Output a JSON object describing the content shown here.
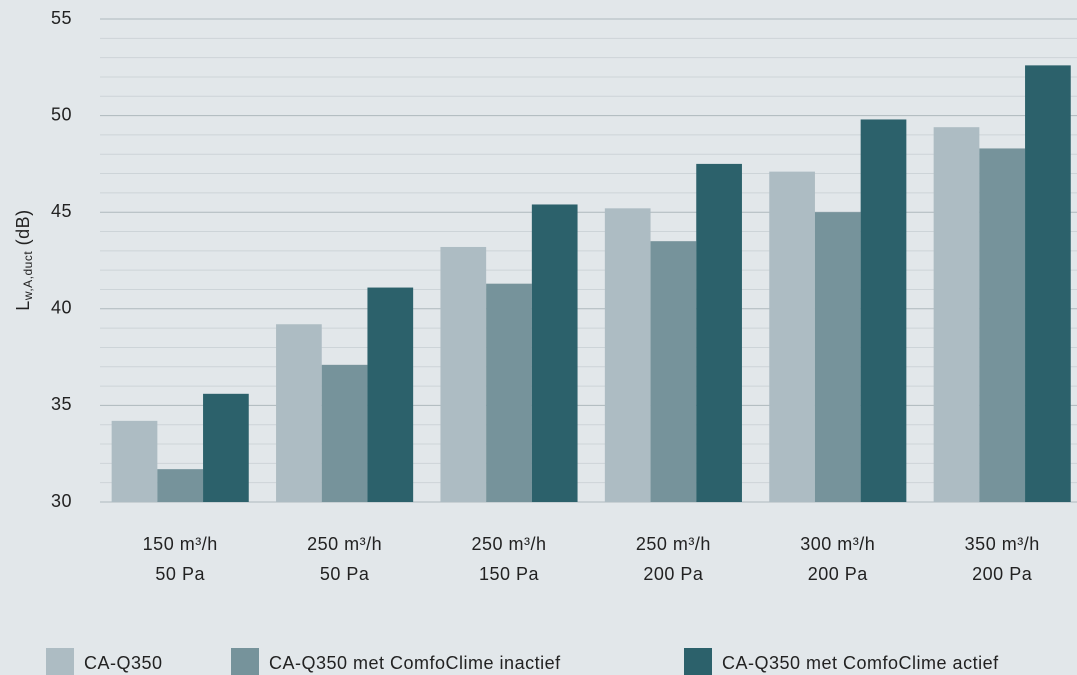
{
  "chart_data": {
    "type": "bar",
    "y_label": {
      "main": "L",
      "sub": "w,A,duct",
      "unit": " (dB)"
    },
    "categories": [
      [
        "150 m³/h",
        "50 Pa"
      ],
      [
        "250 m³/h",
        "50 Pa"
      ],
      [
        "250 m³/h",
        "150 Pa"
      ],
      [
        "250 m³/h",
        "200 Pa"
      ],
      [
        "300 m³/h",
        "200 Pa"
      ],
      [
        "350 m³/h",
        "200 Pa"
      ]
    ],
    "series": [
      {
        "name": "CA-Q350",
        "color": "#adbcc3",
        "values": [
          34.2,
          39.2,
          43.2,
          45.2,
          47.1,
          49.4
        ]
      },
      {
        "name": "CA-Q350 met ComfoClime inactief",
        "color": "#76939b",
        "values": [
          31.7,
          37.1,
          41.3,
          43.5,
          45.0,
          48.3
        ]
      },
      {
        "name": "CA-Q350 met ComfoClime actief",
        "color": "#2c616b",
        "values": [
          35.6,
          41.1,
          45.4,
          47.5,
          49.8,
          52.6
        ]
      }
    ],
    "ylim": [
      30,
      55
    ],
    "yticks": [
      30,
      35,
      40,
      45,
      50,
      55
    ],
    "minor_yticks": [
      31,
      32,
      33,
      34,
      36,
      37,
      38,
      39,
      41,
      42,
      43,
      44,
      46,
      47,
      48,
      49,
      51,
      52,
      53,
      54
    ],
    "grid": true,
    "legend": "bottom"
  }
}
